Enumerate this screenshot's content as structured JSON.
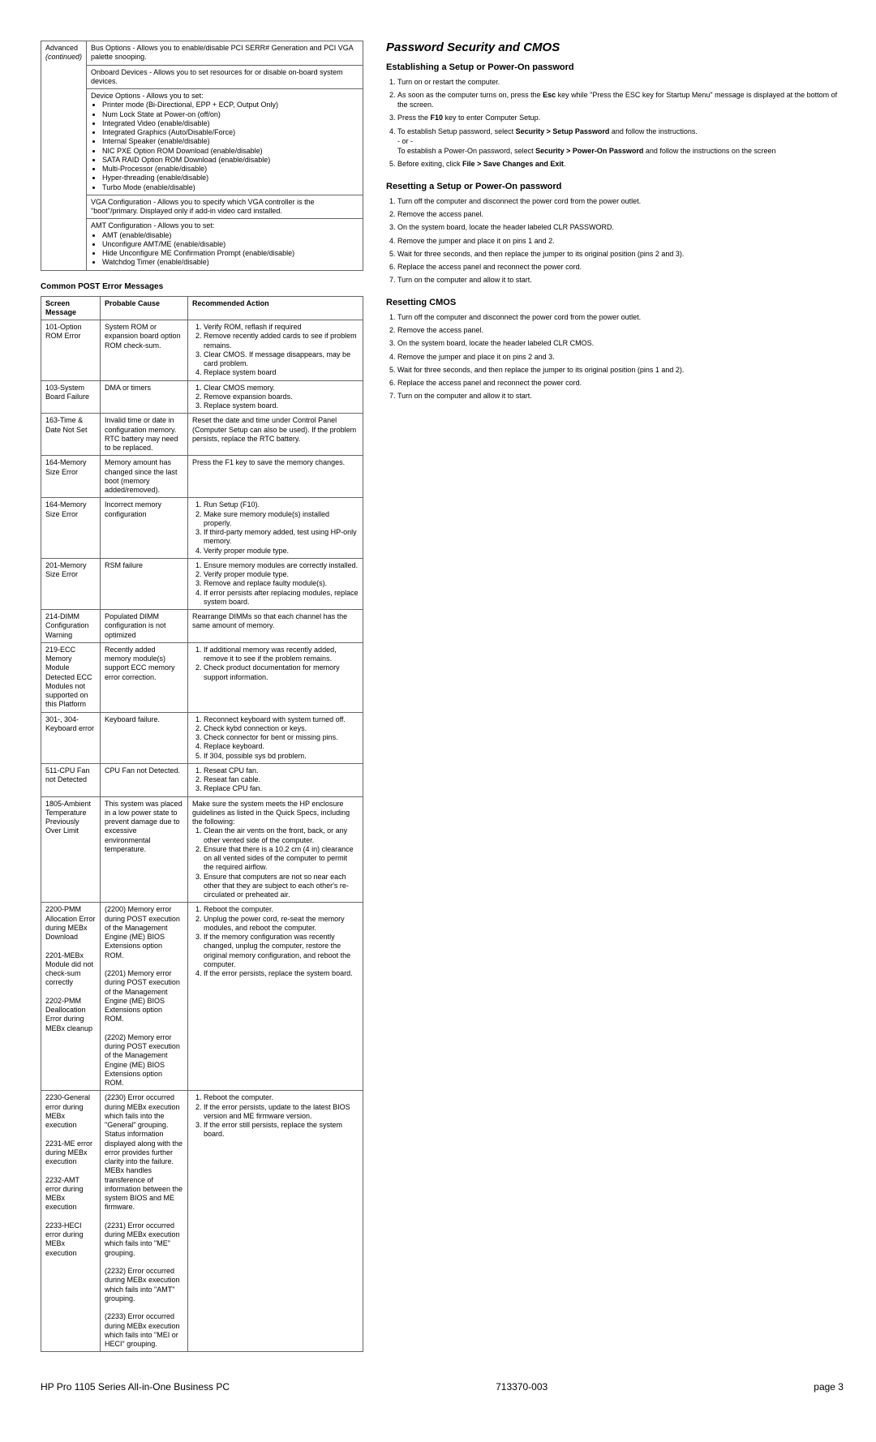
{
  "table1": {
    "col0_label1": "Advanced",
    "col0_label2": "(continued)",
    "rows": [
      "Bus Options - Allows you to enable/disable PCI SERR# Generation and PCI VGA palette snooping.",
      "Onboard Devices - Allows you to set resources for or disable on-board system devices.",
      {
        "lead": "Device Options - Allows you to set:",
        "items": [
          "Printer mode (Bi-Directional, EPP + ECP, Output Only)",
          "Num Lock State at Power-on (off/on)",
          "Integrated Video (enable/disable)",
          "Integrated Graphics (Auto/Disable/Force)",
          "Internal Speaker (enable/disable)",
          "NIC PXE Option ROM Download (enable/disable)",
          "SATA RAID Option ROM Download (enable/disable)",
          "Multi-Processor (enable/disable)",
          "Hyper-threading (enable/disable)",
          "Turbo Mode (enable/disable)"
        ]
      },
      "VGA Configuration - Allows you to specify which VGA controller is the \"boot\"/primary. Displayed only if add-in video card installed.",
      {
        "lead": "AMT Configuration - Allows you to set:",
        "items": [
          "AMT (enable/disable)",
          "Unconfigure AMT/ME (enable/disable)",
          "Hide Unconfigure ME Confirmation Prompt (enable/disable)",
          "Watchdog Timer (enable/disable)"
        ]
      }
    ]
  },
  "post_title": "Common POST Error Messages",
  "post_headers": [
    "Screen Message",
    "Probable Cause",
    "Recommended Action"
  ],
  "post_rows": [
    {
      "msg": "101-Option ROM Error",
      "cause": "System ROM or expansion board option ROM check-sum.",
      "action_list": [
        "Verify ROM, reflash if required",
        "Remove recently added cards to see if problem remains.",
        "Clear CMOS. If message disappears, may be card problem.",
        "Replace system board"
      ]
    },
    {
      "msg": "103-System Board Failure",
      "cause": "DMA or timers",
      "action_list": [
        "Clear CMOS memory.",
        "Remove expansion boards.",
        "Replace system board."
      ]
    },
    {
      "msg": "163-Time & Date Not Set",
      "cause": "Invalid time or date in configuration memory.\nRTC battery may need to be replaced.",
      "action_text": "Reset the date and time under Control Panel (Computer Setup can also be used). If the problem persists, replace the RTC battery."
    },
    {
      "msg": "164-Memory Size Error",
      "cause": "Memory amount has changed since the last boot (memory added/removed).",
      "action_text": "Press the F1 key to save the memory changes."
    },
    {
      "msg": "164-Memory Size Error",
      "cause": "Incorrect memory configuration",
      "action_list": [
        "Run Setup (F10).",
        "Make sure memory module(s) installed properly.",
        "If third-party memory added, test using HP-only memory.",
        "Verify proper module type."
      ]
    },
    {
      "msg": "201-Memory Size Error",
      "cause": "RSM failure",
      "action_list": [
        "Ensure memory modules are correctly installed.",
        "Verify proper module type.",
        "Remove and replace faulty module(s).",
        "If error persists after replacing modules, replace system board."
      ]
    },
    {
      "msg": "214-DIMM Configuration Warning",
      "cause": "Populated DIMM configuration is not optimized",
      "action_text": "Rearrange DIMMs so that each channel has the same amount of memory."
    },
    {
      "msg": "219-ECC Memory Module Detected ECC Modules not supported on this Platform",
      "cause": "Recently added memory module(s) support ECC memory error correction.",
      "action_list": [
        "If additional memory was recently added, remove it to see if the problem remains.",
        "Check product documentation for memory support information."
      ]
    },
    {
      "msg": "301-, 304-Keyboard error",
      "cause": "Keyboard failure.",
      "action_list": [
        "Reconnect keyboard with system turned off.",
        "Check kybd connection or keys.",
        "Check connector for bent or missing pins.",
        "Replace keyboard.",
        "If 304, possible sys bd problem."
      ]
    },
    {
      "msg": "511-CPU Fan not Detected",
      "cause": "CPU Fan not Detected.",
      "action_list": [
        "Reseat CPU fan.",
        "Reseat fan cable.",
        "Replace CPU fan."
      ]
    },
    {
      "msg": "1805-Ambient Temperature Previously Over Limit",
      "cause": "This system was placed in a low power state to prevent damage due to excessive environmental temperature.",
      "action_lead": "Make sure the system meets the HP enclosure guidelines as listed in the Quick Specs, including the following:",
      "action_list": [
        "Clean the air vents on the front, back, or any other vented side of the computer.",
        "Ensure that there is a 10.2 cm (4 in) clearance on all vented sides of the computer to permit the required airflow.",
        "Ensure that computers are not so near each other that they are subject to each other's re-circulated or preheated air."
      ]
    },
    {
      "msg": "2200-PMM Allocation Error during MEBx Download\n\n2201-MEBx Module did not check-sum correctly\n\n2202-PMM Deallocation Error during MEBx cleanup",
      "cause": "(2200) Memory error during POST execution of the Management Engine (ME) BIOS Extensions option ROM.\n\n(2201) Memory error during POST execution of the Management Engine (ME) BIOS Extensions option ROM.\n\n(2202) Memory error during POST execution of the Management Engine (ME) BIOS Extensions option ROM.",
      "action_list": [
        "Reboot the computer.",
        "Unplug the power cord, re-seat the memory modules, and reboot the computer.",
        "If the memory configuration was recently changed, unplug the computer, restore the original memory configuration, and reboot the computer.",
        "If the error persists, replace the system board."
      ]
    },
    {
      "msg": "2230-General error during MEBx execution\n\n2231-ME error during MEBx execution\n\n2232-AMT error during MEBx execution\n\n2233-HECI error during MEBx execution",
      "cause": "(2230) Error occurred during MEBx execution which fails into the \"General\" grouping. Status information displayed along with the error provides further clarity into the failure. MEBx handles transference of information between the system BIOS and ME firmware.\n\n(2231) Error occurred during MEBx execution which fails into \"ME\" grouping.\n\n(2232) Error occurred during MEBx execution which fails into \"AMT\" grouping.\n\n(2233) Error occurred during MEBx execution which fails into \"MEI or HECI\" grouping.",
      "action_list": [
        "Reboot the computer.",
        "If the error persists, update to the latest BIOS version and ME firmware version.",
        "If the error still persists, replace the system board."
      ]
    }
  ],
  "right": {
    "title": "Password Security and CMOS",
    "sections": [
      {
        "heading": "Establishing a Setup or Power-On password",
        "steps": [
          "Turn on or restart the computer.",
          "As soon as the computer turns on, press the <b>Esc</b> key while \"Press the ESC key for Startup Menu\" message is displayed at the bottom of the screen.",
          "Press the <b>F10</b> key to enter Computer Setup.",
          "To establish Setup password, select <b>Security > Setup Password</b> and follow the instructions.<br>- or -<br>To establish a Power-On password, select <b>Security > Power-On Password</b> and follow the instructions on the screen",
          "Before exiting, click <b>File > Save Changes and Exit</b>."
        ]
      },
      {
        "heading": "Resetting a Setup or Power-On password",
        "steps": [
          "Turn off the computer and disconnect the power cord from the power outlet.",
          "Remove the access panel.",
          "On the system board, locate the header labeled CLR PASSWORD.",
          "Remove the jumper and place it on pins 1 and 2.",
          "Wait for three seconds, and then replace the jumper to its original position (pins 2 and 3).",
          "Replace the access panel and reconnect the power cord.",
          "Turn on the computer and allow it to start."
        ]
      },
      {
        "heading": "Resetting CMOS",
        "steps": [
          "Turn off the computer and disconnect the power cord from the power outlet.",
          "Remove the access panel.",
          "On the system board, locate the header labeled CLR CMOS.",
          "Remove the jumper and place it on pins 2 and 3.",
          "Wait for three seconds, and then replace the jumper to its original position (pins 1 and 2).",
          "Replace the access panel and reconnect the power cord.",
          "Turn on the computer and allow it to start."
        ]
      }
    ]
  },
  "footer": {
    "left": "HP Pro 1105 Series All-in-One Business PC",
    "center": "713370-003",
    "right": "page 3"
  }
}
